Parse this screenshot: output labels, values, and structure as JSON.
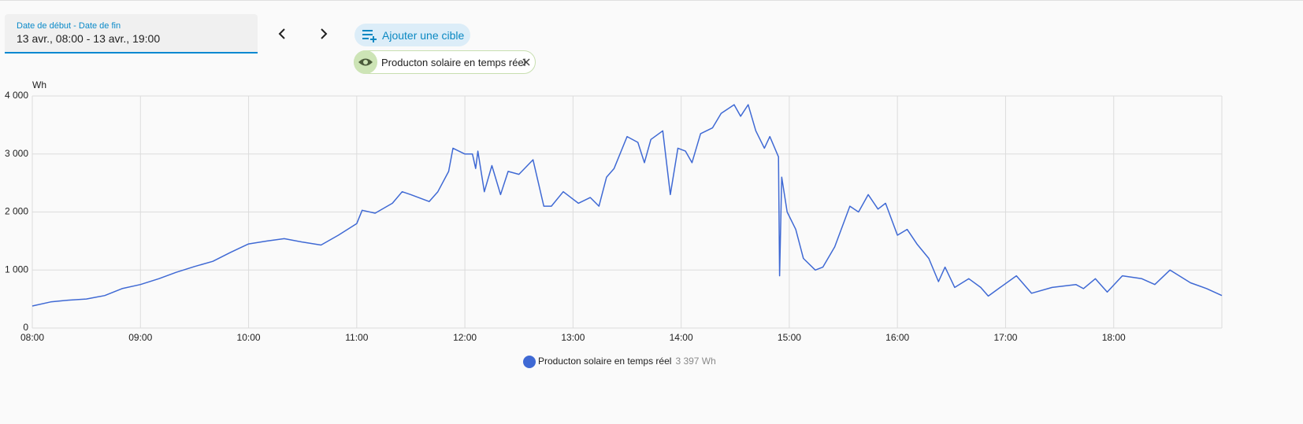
{
  "header": {
    "date_field": {
      "label": "Date de début - Date de fin",
      "value": "13 avr., 08:00 - 13 avr., 19:00"
    },
    "add_target": "Ajouter une cible",
    "target_chip": "Producton solaire en temps réel"
  },
  "chart_data": {
    "type": "line",
    "y_unit": "Wh",
    "xlim": [
      8,
      19
    ],
    "xticks": [
      {
        "value": 8,
        "label": "08:00"
      },
      {
        "value": 9,
        "label": "09:00"
      },
      {
        "value": 10,
        "label": "10:00"
      },
      {
        "value": 11,
        "label": "11:00"
      },
      {
        "value": 12,
        "label": "12:00"
      },
      {
        "value": 13,
        "label": "13:00"
      },
      {
        "value": 14,
        "label": "14:00"
      },
      {
        "value": 15,
        "label": "15:00"
      },
      {
        "value": 16,
        "label": "16:00"
      },
      {
        "value": 17,
        "label": "17:00"
      },
      {
        "value": 18,
        "label": "18:00"
      }
    ],
    "ylim": [
      0,
      4000
    ],
    "yticks": [
      0,
      {
        "value": 1000,
        "label": "1 000"
      },
      {
        "value": 2000,
        "label": "2 000"
      },
      {
        "value": 3000,
        "label": "3 000"
      },
      {
        "value": 4000,
        "label": "4 000"
      }
    ],
    "grid": true,
    "x": [
      8.0,
      8.17,
      8.33,
      8.5,
      8.67,
      8.83,
      9.0,
      9.17,
      9.33,
      9.5,
      9.67,
      9.83,
      9.92,
      10.0,
      10.17,
      10.33,
      10.5,
      10.67,
      10.83,
      11.0,
      11.05,
      11.17,
      11.33,
      11.42,
      11.5,
      11.67,
      11.75,
      11.85,
      11.89,
      12.0,
      12.07,
      12.1,
      12.12,
      12.18,
      12.25,
      12.33,
      12.4,
      12.5,
      12.63,
      12.73,
      12.8,
      12.91,
      13.05,
      13.16,
      13.24,
      13.31,
      13.38,
      13.5,
      13.6,
      13.66,
      13.72,
      13.83,
      13.9,
      13.97,
      14.04,
      14.1,
      14.18,
      14.29,
      14.37,
      14.49,
      14.55,
      14.62,
      14.69,
      14.77,
      14.82,
      14.9,
      14.91,
      14.93,
      14.98,
      15.06,
      15.13,
      15.24,
      15.31,
      15.42,
      15.56,
      15.64,
      15.73,
      15.82,
      15.89,
      16.0,
      16.09,
      16.18,
      16.29,
      16.38,
      16.44,
      16.53,
      16.66,
      16.77,
      16.84,
      16.95,
      17.1,
      17.24,
      17.43,
      17.65,
      17.72,
      17.83,
      17.94,
      18.08,
      18.26,
      18.38,
      18.52,
      18.71,
      18.86,
      19.0
    ],
    "series": [
      {
        "name": "Producton solaire en temps réel",
        "color": "#3f69d4",
        "current_value": "3 397 Wh",
        "values": [
          380,
          450,
          480,
          500,
          560,
          680,
          750,
          850,
          960,
          1060,
          1150,
          1300,
          1380,
          1450,
          1500,
          1540,
          1480,
          1430,
          1600,
          1800,
          2030,
          1980,
          2150,
          2350,
          2300,
          2180,
          2350,
          2700,
          3100,
          3000,
          3000,
          2750,
          3050,
          2350,
          2800,
          2300,
          2700,
          2650,
          2900,
          2100,
          2100,
          2350,
          2150,
          2250,
          2100,
          2600,
          2750,
          3300,
          3200,
          2850,
          3250,
          3400,
          2300,
          3100,
          3050,
          2850,
          3350,
          3450,
          3700,
          3850,
          3650,
          3850,
          3400,
          3100,
          3300,
          2950,
          900,
          2600,
          2000,
          1700,
          1200,
          1000,
          1050,
          1400,
          2100,
          2000,
          2300,
          2050,
          2150,
          1600,
          1700,
          1450,
          1200,
          800,
          1050,
          700,
          850,
          700,
          550,
          700,
          900,
          600,
          700,
          750,
          680,
          850,
          620,
          900,
          850,
          750,
          1000,
          780,
          680,
          560
        ]
      }
    ]
  }
}
